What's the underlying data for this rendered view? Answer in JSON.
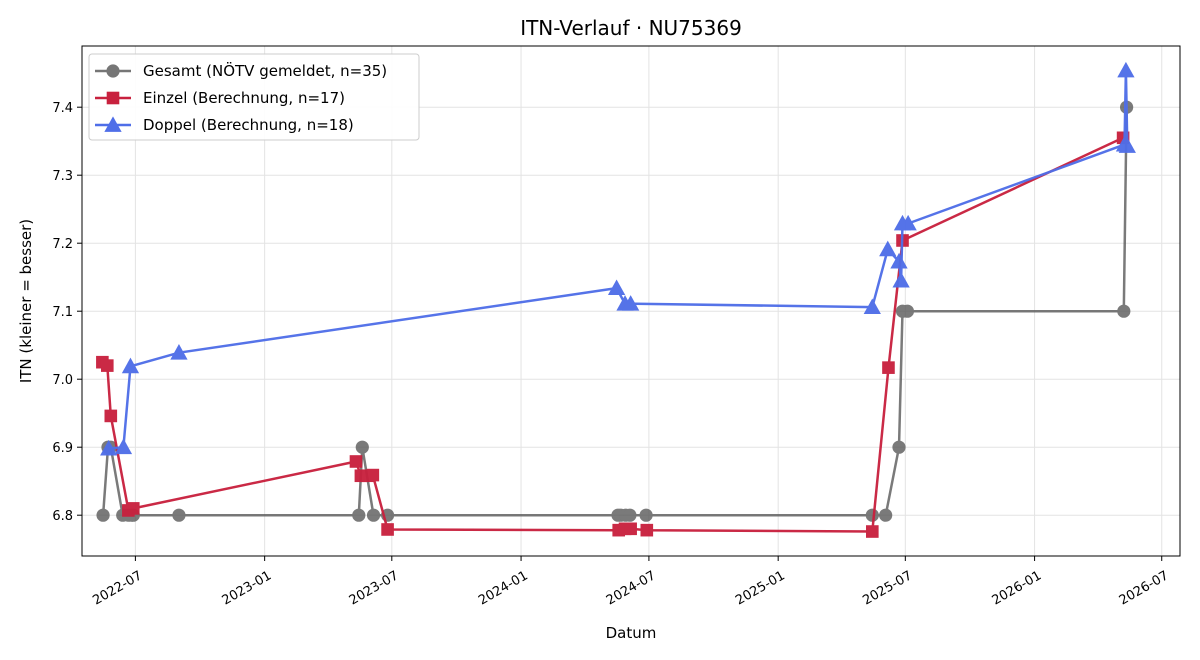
{
  "chart_data": {
    "type": "line",
    "title": "ITN-Verlauf · NU75369",
    "xlabel": "Datum",
    "ylabel": "ITN  (kleiner = besser)",
    "x_ticks": [
      "2022-07",
      "2023-01",
      "2023-07",
      "2024-01",
      "2024-07",
      "2025-01",
      "2025-07",
      "2026-01",
      "2026-07"
    ],
    "y_ticks": [
      "6.8",
      "6.9",
      "7.0",
      "7.1",
      "7.2",
      "7.3",
      "7.4"
    ],
    "xlim": [
      "2022-04-16",
      "2026-07-27"
    ],
    "ylim": [
      6.74,
      7.49
    ],
    "grid": true,
    "legend_position": "top-left",
    "series": [
      {
        "name": "Gesamt (NÖTV gemeldet, n=35)",
        "color": "#555555",
        "marker": "circle",
        "points": [
          [
            "2022-05-16",
            6.8
          ],
          [
            "2022-05-23",
            6.9
          ],
          [
            "2022-05-27",
            6.9
          ],
          [
            "2022-06-13",
            6.8
          ],
          [
            "2022-06-21",
            6.8
          ],
          [
            "2022-06-25",
            6.8
          ],
          [
            "2022-06-28",
            6.8
          ],
          [
            "2022-09-01",
            6.8
          ],
          [
            "2023-05-15",
            6.8
          ],
          [
            "2023-05-20",
            6.9
          ],
          [
            "2023-06-05",
            6.8
          ],
          [
            "2023-06-25",
            6.8
          ],
          [
            "2024-05-18",
            6.8
          ],
          [
            "2024-05-22",
            6.8
          ],
          [
            "2024-05-29",
            6.8
          ],
          [
            "2024-06-04",
            6.8
          ],
          [
            "2024-06-27",
            6.8
          ],
          [
            "2025-05-15",
            6.8
          ],
          [
            "2025-06-03",
            6.8
          ],
          [
            "2025-06-22",
            6.9
          ],
          [
            "2025-06-27",
            7.1
          ],
          [
            "2025-07-04",
            7.1
          ],
          [
            "2026-05-08",
            7.1
          ],
          [
            "2026-05-12",
            7.4
          ]
        ]
      },
      {
        "name": "Einzel (Berechnung, n=17)",
        "color": "#c8213e",
        "marker": "square",
        "points": [
          [
            "2022-05-15",
            7.025
          ],
          [
            "2022-05-22",
            7.02
          ],
          [
            "2022-05-27",
            6.946
          ],
          [
            "2022-06-21",
            6.807
          ],
          [
            "2022-06-28",
            6.81
          ],
          [
            "2023-05-11",
            6.879
          ],
          [
            "2023-05-18",
            6.858
          ],
          [
            "2023-05-27",
            6.858
          ],
          [
            "2023-06-04",
            6.859
          ],
          [
            "2023-06-25",
            6.779
          ],
          [
            "2024-05-19",
            6.778
          ],
          [
            "2024-05-28",
            6.78
          ],
          [
            "2024-06-05",
            6.78
          ],
          [
            "2024-06-28",
            6.778
          ],
          [
            "2025-05-15",
            6.776
          ],
          [
            "2025-06-07",
            7.017
          ],
          [
            "2025-06-27",
            7.204
          ],
          [
            "2026-05-07",
            7.355
          ]
        ]
      },
      {
        "name": "Doppel (Berechnung, n=18)",
        "color": "#4f6ee8",
        "marker": "triangle",
        "points": [
          [
            "2022-05-24",
            6.898
          ],
          [
            "2022-06-14",
            6.9
          ],
          [
            "2022-06-24",
            7.019
          ],
          [
            "2022-09-01",
            7.039
          ],
          [
            "2024-05-16",
            7.134
          ],
          [
            "2024-05-28",
            7.111
          ],
          [
            "2024-06-05",
            7.111
          ],
          [
            "2025-05-15",
            7.106
          ],
          [
            "2025-06-06",
            7.191
          ],
          [
            "2025-06-22",
            7.173
          ],
          [
            "2025-06-25",
            7.145
          ],
          [
            "2025-06-27",
            7.229
          ],
          [
            "2025-07-05",
            7.229
          ],
          [
            "2026-05-09",
            7.345
          ],
          [
            "2026-05-11",
            7.454
          ],
          [
            "2026-05-13",
            7.343
          ]
        ]
      }
    ]
  }
}
